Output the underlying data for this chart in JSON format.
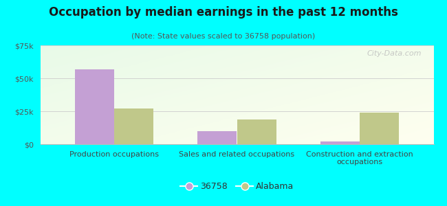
{
  "title": "Occupation by median earnings in the past 12 months",
  "subtitle": "(Note: State values scaled to 36758 population)",
  "categories": [
    "Production occupations",
    "Sales and related occupations",
    "Construction and extraction\noccupations"
  ],
  "series": {
    "36758": [
      57000,
      10000,
      2000
    ],
    "Alabama": [
      27000,
      19000,
      24000
    ]
  },
  "bar_colors": {
    "36758": "#c4a0d4",
    "Alabama": "#c0c88a"
  },
  "ylim": [
    0,
    75000
  ],
  "yticks": [
    0,
    25000,
    50000,
    75000
  ],
  "ytick_labels": [
    "$0",
    "$25k",
    "$50k",
    "$75k"
  ],
  "background_color": "#00ffff",
  "plot_bg_topleft": "#e8f5e8",
  "plot_bg_bottomright": "#fffff0",
  "bar_width": 0.32,
  "watermark": "City-Data.com",
  "title_fontsize": 12,
  "subtitle_fontsize": 8,
  "tick_fontsize": 8,
  "legend_fontsize": 9,
  "legend_marker": "o"
}
